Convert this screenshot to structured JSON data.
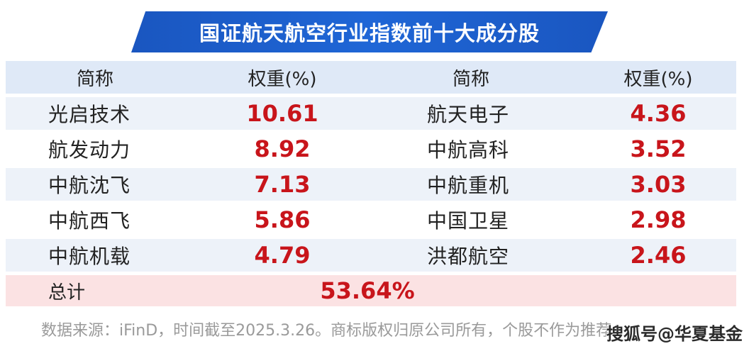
{
  "title": "国证航天航空行业指数前十大成分股",
  "header": {
    "name_label": "简称",
    "weight_label": "权重(%)"
  },
  "rows": [
    {
      "left_name": "光启技术",
      "left_weight": "10.61",
      "right_name": "航天电子",
      "right_weight": "4.36"
    },
    {
      "left_name": "航发动力",
      "left_weight": "8.92",
      "right_name": "中航高科",
      "right_weight": "3.52"
    },
    {
      "left_name": "中航沈飞",
      "left_weight": "7.13",
      "right_name": "中航重机",
      "right_weight": "3.03"
    },
    {
      "left_name": "中航西飞",
      "left_weight": "5.86",
      "right_name": "中国卫星",
      "right_weight": "2.98"
    },
    {
      "left_name": "中航机载",
      "left_weight": "4.79",
      "right_name": "洪都航空",
      "right_weight": "2.46"
    }
  ],
  "total": {
    "label": "总计",
    "value": "53.64%"
  },
  "footer": {
    "source_note": "数据来源：iFinD，时间截至2025.3.26。商标版权归原公司所有，个股不作为推荐。"
  },
  "watermark": "搜狐号@华夏基金",
  "colors": {
    "banner": "#1f66d6",
    "header_row": "#dfe9f7",
    "stripe_row": "#edf2f9",
    "total_row": "#fbe2e3",
    "value_red": "#c8151b"
  }
}
